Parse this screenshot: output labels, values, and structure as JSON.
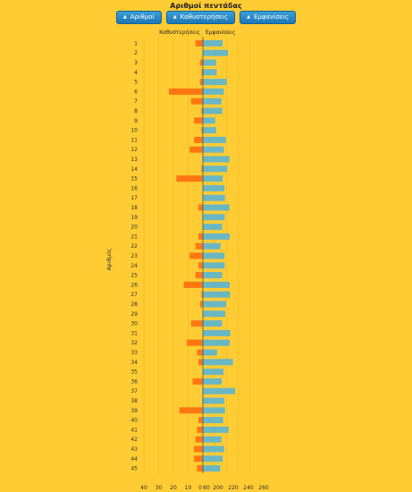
{
  "title": "Αριθμοί πεντάδας",
  "buttons": [
    {
      "label": "Αριθμοί",
      "icon": "triangle-up-icon"
    },
    {
      "label": "Καθυστερήσεις",
      "icon": "triangle-up-icon"
    },
    {
      "label": "Εμφανίσεις",
      "icon": "triangle-up-icon"
    }
  ],
  "colors": {
    "background": "#ffcc33",
    "delays": "#ff7711",
    "appearances": "#6ab7c4",
    "axis": "#555555",
    "grid": "#e8b82a",
    "button": "#1c76b5"
  },
  "chart_data": {
    "type": "bar",
    "layout": "back-to-back horizontal",
    "ylabel": "Αριθμός",
    "categories": [
      "1",
      "2",
      "3",
      "4",
      "5",
      "6",
      "7",
      "8",
      "9",
      "10",
      "11",
      "12",
      "13",
      "14",
      "15",
      "16",
      "17",
      "18",
      "19",
      "20",
      "21",
      "22",
      "23",
      "24",
      "25",
      "26",
      "27",
      "28",
      "29",
      "30",
      "31",
      "32",
      "33",
      "34",
      "35",
      "36",
      "37",
      "38",
      "39",
      "40",
      "41",
      "42",
      "43",
      "44",
      "45"
    ],
    "series": [
      {
        "name": "Καθυστερήσεις",
        "side": "left",
        "values": [
          5,
          0,
          2,
          1,
          2,
          23,
          8,
          1,
          6,
          1,
          6,
          9,
          0,
          1,
          18,
          0,
          0,
          3,
          0,
          0,
          3,
          5,
          9,
          3,
          5,
          13,
          1,
          2,
          0,
          8,
          0,
          11,
          4,
          3,
          0,
          7,
          0,
          0,
          16,
          3,
          4,
          5,
          6,
          6,
          4
        ],
        "xlim": [
          0,
          40
        ],
        "ticks": [
          "40",
          "30",
          "20",
          "10",
          "0"
        ]
      },
      {
        "name": "Εμφανίσεις",
        "side": "right",
        "values": [
          147,
          165,
          125,
          127,
          161,
          151,
          143,
          146,
          122,
          125,
          158,
          151,
          170,
          163,
          147,
          153,
          155,
          170,
          154,
          145,
          171,
          140,
          153,
          154,
          145,
          171,
          172,
          159,
          156,
          145,
          173,
          171,
          128,
          182,
          150,
          144,
          189,
          153,
          155,
          149,
          167,
          144,
          152,
          147,
          139
        ],
        "xlim": [
          80,
          280
        ],
        "ticks": [
          "80",
          "200",
          "220",
          "240",
          "260"
        ]
      }
    ],
    "grid": true
  }
}
